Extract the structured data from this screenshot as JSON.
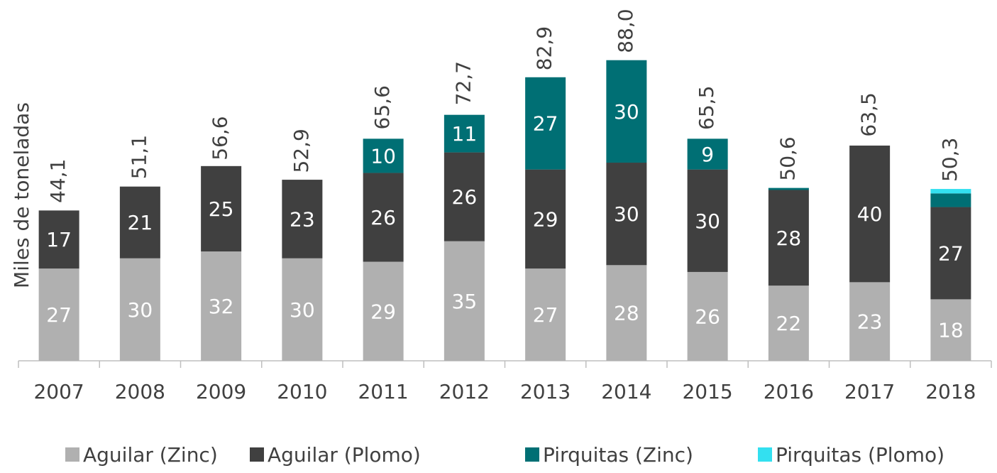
{
  "chart_data": {
    "type": "stacked-bar",
    "y_label": "Miles de toneladas",
    "categories": [
      "2007",
      "2008",
      "2009",
      "2010",
      "2011",
      "2012",
      "2013",
      "2014",
      "2015",
      "2016",
      "2017",
      "2018"
    ],
    "series": [
      {
        "name": "Aguilar (Zinc)",
        "color": "#b0b0b0",
        "values": [
          27,
          30,
          32,
          30,
          29,
          35,
          27,
          28,
          26,
          22,
          23,
          18
        ]
      },
      {
        "name": "Aguilar (Plomo)",
        "color": "#404040",
        "values": [
          17,
          21,
          25,
          23,
          26,
          26,
          29,
          30,
          30,
          28,
          40,
          27
        ]
      },
      {
        "name": "Pirquitas (Zinc)",
        "color": "#006f74",
        "values": [
          null,
          null,
          null,
          null,
          10,
          11,
          27,
          30,
          9,
          0.6,
          null,
          4
        ]
      },
      {
        "name": "Pirquitas (Plomo)",
        "color": "#33e0f0",
        "values": [
          null,
          null,
          null,
          null,
          null,
          null,
          null,
          null,
          null,
          null,
          null,
          1.3
        ]
      }
    ],
    "totals": [
      44.1,
      51.1,
      56.6,
      52.9,
      65.6,
      72.7,
      82.9,
      88.0,
      65.5,
      50.6,
      63.5,
      50.3
    ],
    "total_labels": [
      "44,1",
      "51,1",
      "56,6",
      "52,9",
      "65,6",
      "72,7",
      "82,9",
      "88,0",
      "65,5",
      "50,6",
      "63,5",
      "50,3"
    ],
    "ylim": [
      0,
      100
    ]
  }
}
